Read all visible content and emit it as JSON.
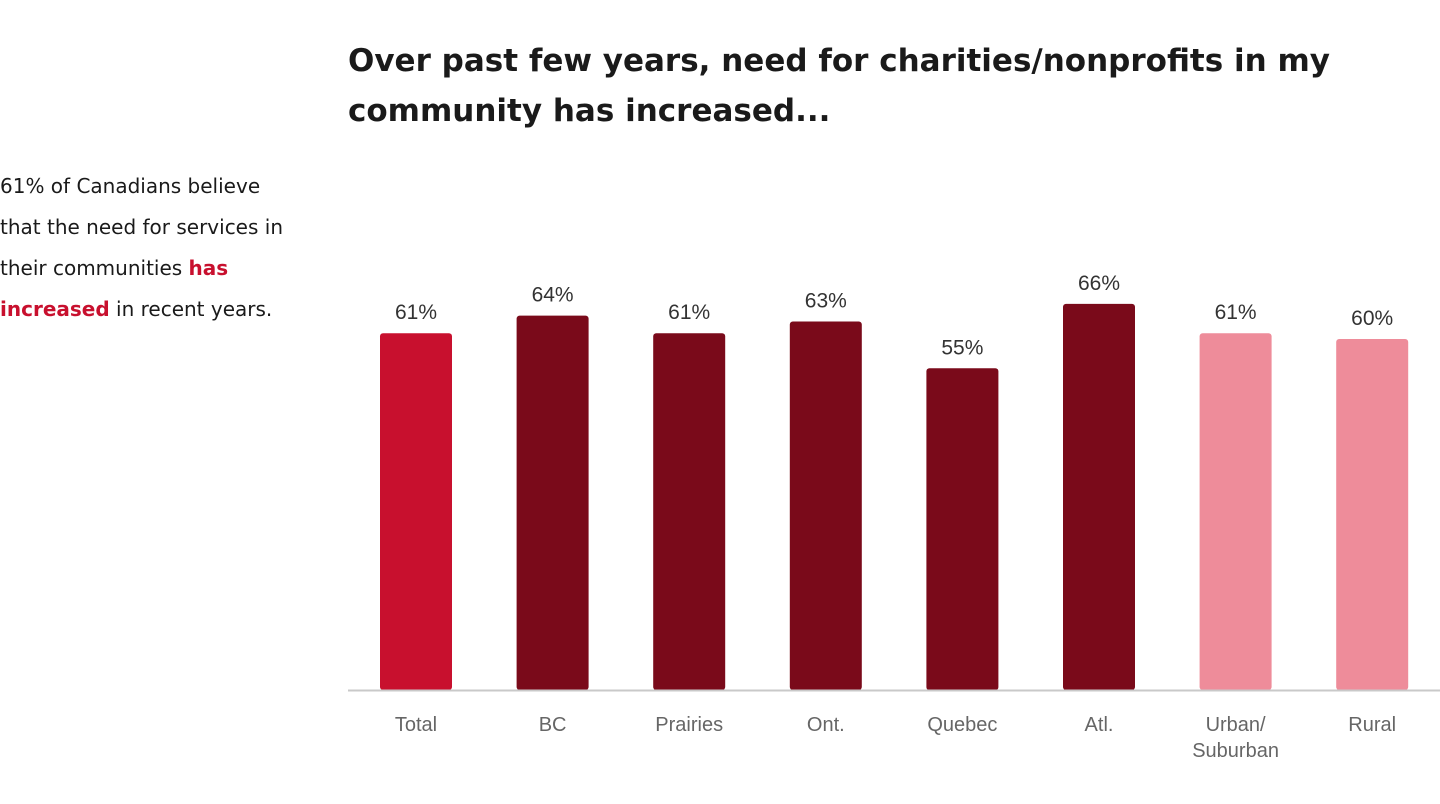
{
  "intro": {
    "part1": "61% of Canadians believe that the need for services in their communities ",
    "highlight": "has increased",
    "part2": " in recent years."
  },
  "chart_data": {
    "type": "bar",
    "title": "Over past few years, need for charities/nonprofits in my community has increased...",
    "categories": [
      "Total",
      "BC",
      "Prairies",
      "Ont.",
      "Quebec",
      "Atl.",
      "Urban/\nSuburban",
      "Rural"
    ],
    "values": [
      61,
      64,
      61,
      63,
      55,
      66,
      61,
      60
    ],
    "value_labels": [
      "61%",
      "64%",
      "61%",
      "63%",
      "55%",
      "66%",
      "61%",
      "60%"
    ],
    "ylim": [
      0,
      100
    ],
    "grid": false,
    "legend": "none",
    "colors": [
      "#c8102e",
      "#7a0a1a",
      "#7a0a1a",
      "#7a0a1a",
      "#7a0a1a",
      "#7a0a1a",
      "#ee8c9a",
      "#ee8c9a"
    ],
    "axis_color": "#c9c9c9"
  }
}
